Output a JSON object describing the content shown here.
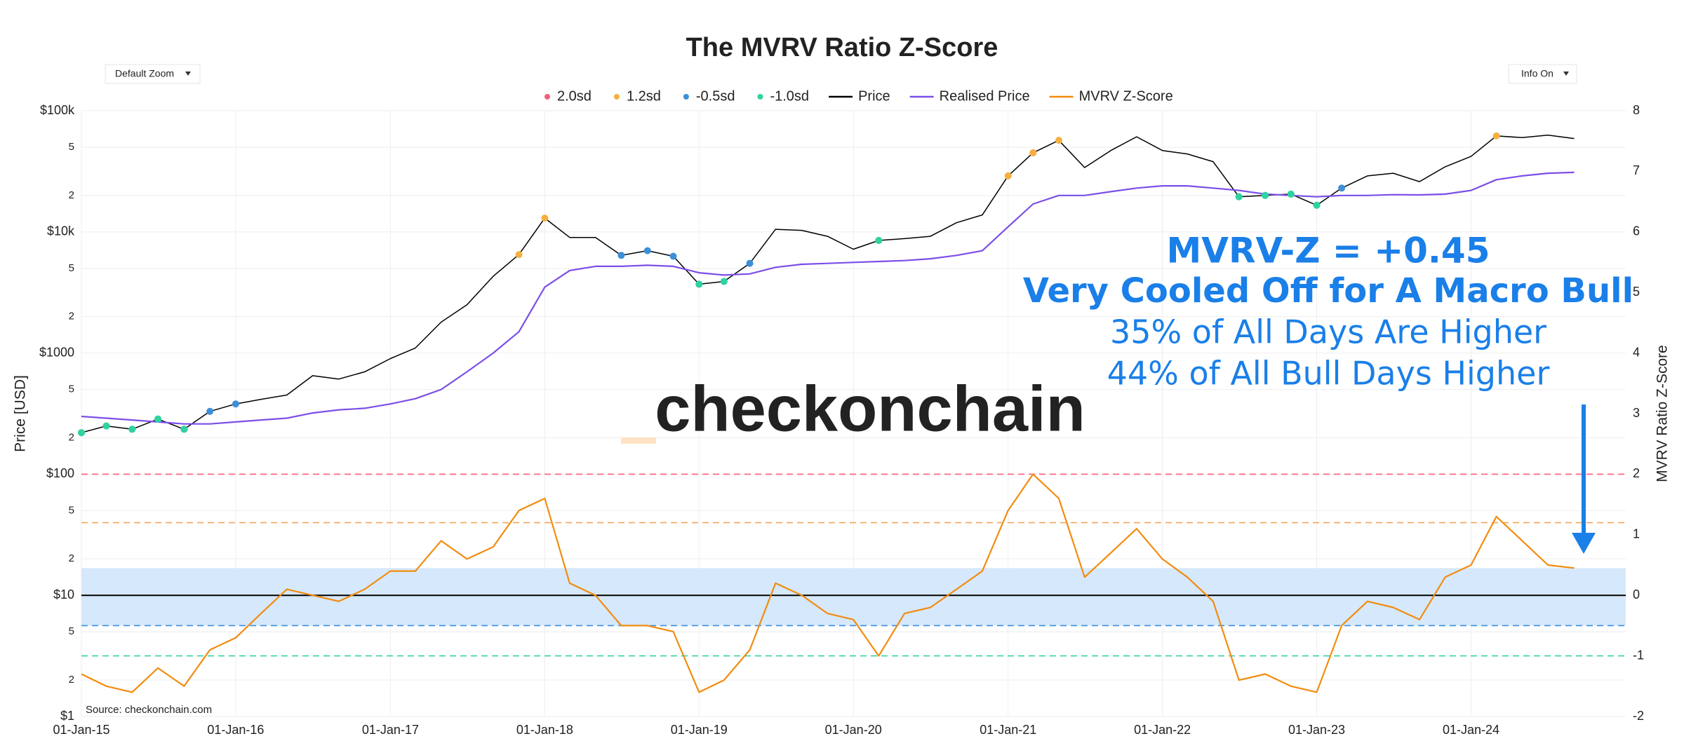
{
  "controls": [
    "Default Zoom",
    "Info On"
  ],
  "watermark": "checkonchain",
  "source": "Source: checkonchain.com",
  "annotations": [
    "MVRV-Z = +0.45",
    "Very Cooled Off for A Macro Bull",
    "35% of All Days Are Higher",
    "44% of All Bull Days Higher"
  ],
  "chart_data": {
    "type": "line",
    "title": "The MVRV Ratio Z-Score",
    "y_label": "Price [USD]",
    "y2_label": "MVRV Ratio Z-Score",
    "log_y": true,
    "grid": true,
    "legend": "top",
    "x": [
      "2015-01-01",
      "2015-03-01",
      "2015-05-01",
      "2015-07-01",
      "2015-09-01",
      "2015-11-01",
      "2016-01-01",
      "2016-03-01",
      "2016-05-01",
      "2016-07-01",
      "2016-09-01",
      "2016-11-01",
      "2017-01-01",
      "2017-03-01",
      "2017-05-01",
      "2017-07-01",
      "2017-09-01",
      "2017-11-01",
      "2018-01-01",
      "2018-03-01",
      "2018-05-01",
      "2018-07-01",
      "2018-09-01",
      "2018-11-01",
      "2019-01-01",
      "2019-03-01",
      "2019-05-01",
      "2019-07-01",
      "2019-09-01",
      "2019-11-01",
      "2020-01-01",
      "2020-03-01",
      "2020-05-01",
      "2020-07-01",
      "2020-09-01",
      "2020-11-01",
      "2021-01-01",
      "2021-03-01",
      "2021-05-01",
      "2021-07-01",
      "2021-09-01",
      "2021-11-01",
      "2022-01-01",
      "2022-03-01",
      "2022-05-01",
      "2022-07-01",
      "2022-09-01",
      "2022-11-01",
      "2023-01-01",
      "2023-03-01",
      "2023-05-01",
      "2023-07-01",
      "2023-09-01",
      "2023-11-01",
      "2024-01-01",
      "2024-03-01",
      "2024-05-01",
      "2024-07-01",
      "2024-09-01"
    ],
    "xlim": [
      "2015-01-01",
      "2025-01-01"
    ],
    "xticks": [
      {
        "value": "2015-01-01",
        "label": "01-Jan-15"
      },
      {
        "value": "2016-01-01",
        "label": "01-Jan-16"
      },
      {
        "value": "2017-01-01",
        "label": "01-Jan-17"
      },
      {
        "value": "2018-01-01",
        "label": "01-Jan-18"
      },
      {
        "value": "2019-01-01",
        "label": "01-Jan-19"
      },
      {
        "value": "2020-01-01",
        "label": "01-Jan-20"
      },
      {
        "value": "2021-01-01",
        "label": "01-Jan-21"
      },
      {
        "value": "2022-01-01",
        "label": "01-Jan-22"
      },
      {
        "value": "2023-01-01",
        "label": "01-Jan-23"
      },
      {
        "value": "2024-01-01",
        "label": "01-Jan-24"
      }
    ],
    "ylim": [
      1,
      100000
    ],
    "yticks": [
      {
        "value": 1,
        "label": "$1"
      },
      2,
      5,
      {
        "value": 10,
        "label": "$10"
      },
      {
        "value": 20,
        "label": "2"
      },
      {
        "value": 50,
        "label": "5"
      },
      {
        "value": 100,
        "label": "$100"
      },
      {
        "value": 200,
        "label": "2"
      },
      {
        "value": 500,
        "label": "5"
      },
      {
        "value": 1000,
        "label": "$1000"
      },
      {
        "value": 2000,
        "label": "2"
      },
      {
        "value": 5000,
        "label": "5"
      },
      {
        "value": 10000,
        "label": "$10k"
      },
      {
        "value": 20000,
        "label": "2"
      },
      {
        "value": 50000,
        "label": "5"
      },
      {
        "value": 100000,
        "label": "$100k"
      }
    ],
    "y2lim": [
      -2,
      8
    ],
    "y2ticks": [
      -2,
      -1,
      0,
      1,
      2,
      3,
      4,
      5,
      6,
      7,
      8
    ],
    "band": {
      "axis": "y2",
      "range": [
        -0.5,
        0.45
      ],
      "color": "#d6e8fb"
    },
    "reference_lines": [
      {
        "axis": "y2",
        "value": 2,
        "color": "#ff5c7c",
        "dash": true
      },
      {
        "axis": "y2",
        "value": 1.2,
        "color": "#f5a55a",
        "dash": true
      },
      {
        "axis": "y2",
        "value": 0,
        "color": "#000000",
        "dash": false
      },
      {
        "axis": "y2",
        "value": -0.5,
        "color": "#3a8fe0",
        "dash": true
      },
      {
        "axis": "y2",
        "value": -1,
        "color": "#34d1a4",
        "dash": true
      }
    ],
    "series": [
      {
        "name": "2.0sd",
        "color": "#f2607e",
        "mode": "markers",
        "x": [
          "2021-03-01"
        ],
        "values": [
          45000
        ]
      },
      {
        "name": "1.2sd",
        "color": "#f5b041",
        "mode": "markers",
        "x": [
          "2017-11-01",
          "2018-01-01",
          "2021-01-01",
          "2021-03-01",
          "2021-05-01",
          "2024-03-01"
        ],
        "values": [
          6500,
          13000,
          29000,
          45000,
          57000,
          62000
        ]
      },
      {
        "name": "-0.5sd",
        "color": "#3d8fd8",
        "mode": "markers",
        "x": [
          "2015-01-01",
          "2015-03-01",
          "2015-05-01",
          "2015-07-01",
          "2015-09-01",
          "2015-11-01",
          "2016-01-01",
          "2018-07-01",
          "2018-09-01",
          "2018-11-01",
          "2019-01-01",
          "2019-03-01",
          "2019-05-01",
          "2020-03-01",
          "2022-07-01",
          "2022-09-01",
          "2022-11-01",
          "2023-01-01",
          "2023-03-01"
        ],
        "values": [
          220,
          250,
          235,
          285,
          235,
          330,
          380,
          6400,
          7000,
          6300,
          3700,
          3900,
          5500,
          8500,
          19500,
          20000,
          20500,
          16600,
          23000
        ]
      },
      {
        "name": "-1.0sd",
        "color": "#2ed3a0",
        "mode": "markers",
        "x": [
          "2015-01-01",
          "2015-03-01",
          "2015-05-01",
          "2015-07-01",
          "2015-09-01",
          "2019-01-01",
          "2019-03-01",
          "2020-03-01",
          "2022-07-01",
          "2022-09-01",
          "2022-11-01",
          "2023-01-01"
        ],
        "values": [
          220,
          250,
          235,
          285,
          235,
          3700,
          3900,
          8500,
          19500,
          20000,
          20500,
          16600
        ]
      },
      {
        "name": "Price",
        "color": "#000000",
        "mode": "line",
        "values": [
          220,
          250,
          235,
          285,
          235,
          330,
          380,
          415,
          450,
          650,
          610,
          700,
          900,
          1100,
          1800,
          2500,
          4300,
          6500,
          13000,
          9000,
          9000,
          6400,
          7000,
          6300,
          3700,
          3900,
          5500,
          10500,
          10300,
          9200,
          7200,
          8500,
          8800,
          9200,
          11900,
          13800,
          29000,
          45000,
          57000,
          34000,
          47000,
          61000,
          47000,
          44000,
          38000,
          19500,
          20000,
          20500,
          16600,
          23000,
          29000,
          30500,
          26000,
          34500,
          42000,
          62000,
          60000,
          63000,
          59000
        ]
      },
      {
        "name": "Realised Price",
        "color": "#7b4fe8",
        "mode": "line",
        "values": [
          300,
          290,
          280,
          270,
          260,
          260,
          270,
          280,
          290,
          320,
          340,
          350,
          380,
          420,
          500,
          700,
          1000,
          1500,
          3500,
          4800,
          5200,
          5200,
          5300,
          5200,
          4600,
          4400,
          4500,
          5100,
          5400,
          5500,
          5600,
          5700,
          5800,
          6000,
          6400,
          7000,
          11000,
          17000,
          20000,
          20000,
          21500,
          23000,
          24000,
          24000,
          23000,
          22000,
          20500,
          20000,
          19500,
          20000,
          20000,
          20300,
          20200,
          20500,
          22000,
          27000,
          29000,
          30500,
          31000
        ]
      },
      {
        "name": "MVRV Z-Score",
        "color": "#f28c0f",
        "mode": "line",
        "axis": "y2",
        "values": [
          -1.3,
          -1.5,
          -1.6,
          -1.2,
          -1.5,
          -0.9,
          -0.7,
          -0.3,
          0.1,
          0.0,
          -0.1,
          0.1,
          0.4,
          0.4,
          0.9,
          0.6,
          0.8,
          1.4,
          1.6,
          0.2,
          0.0,
          -0.5,
          -0.5,
          -0.6,
          -1.6,
          -1.4,
          -0.9,
          0.2,
          0.0,
          -0.3,
          -0.4,
          -1.0,
          -0.3,
          -0.2,
          0.1,
          0.4,
          1.4,
          2.0,
          1.6,
          0.3,
          0.7,
          1.1,
          0.6,
          0.3,
          -0.1,
          -1.4,
          -1.3,
          -1.5,
          -1.6,
          -0.5,
          -0.1,
          -0.2,
          -0.4,
          0.3,
          0.5,
          1.3,
          0.9,
          0.5,
          0.45
        ]
      }
    ]
  }
}
